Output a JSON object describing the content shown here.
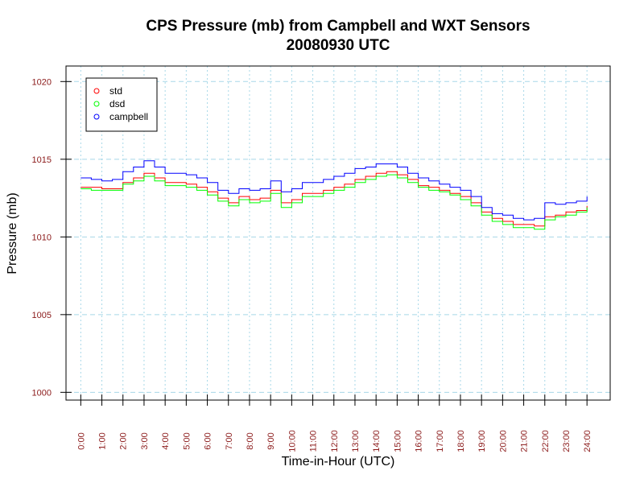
{
  "chart_data": {
    "type": "line",
    "title": "CPS Pressure (mb) from Campbell and WXT Sensors",
    "subtitle": "20080930  UTC",
    "xlabel": "Time-in-Hour (UTC)",
    "ylabel": "Pressure (mb)",
    "ylim": [
      999.5,
      1021
    ],
    "xlim": [
      -0.7,
      25.1
    ],
    "yticks": [
      1000,
      1005,
      1010,
      1015,
      1020
    ],
    "ytick_labels": [
      "1000",
      "1005",
      "1010",
      "1015",
      "1020"
    ],
    "xticks": [
      0,
      1,
      2,
      3,
      4,
      5,
      6,
      7,
      8,
      9,
      10,
      11,
      12,
      13,
      14,
      15,
      16,
      17,
      18,
      19,
      20,
      21,
      22,
      23,
      24
    ],
    "xtick_labels": [
      "0:00",
      "1:00",
      "2:00",
      "3:00",
      "4:00",
      "5:00",
      "6:00",
      "7:00",
      "8:00",
      "9:00",
      "10:00",
      "11:00",
      "12:00",
      "13:00",
      "14:00",
      "15:00",
      "16:00",
      "17:00",
      "18:00",
      "19:00",
      "20:00",
      "21:00",
      "22:00",
      "23:00",
      "24:00"
    ],
    "grid": true,
    "legend_position": "top-left",
    "series": [
      {
        "name": "std",
        "color": "#ff0000",
        "x": [
          0,
          0.5,
          1,
          1.5,
          2,
          2.5,
          3,
          3.5,
          4,
          4.5,
          5,
          5.5,
          6,
          6.5,
          7,
          7.5,
          8,
          8.5,
          9,
          9.5,
          10,
          10.5,
          11,
          11.5,
          12,
          12.5,
          13,
          13.5,
          14,
          14.5,
          15,
          15.5,
          16,
          16.5,
          17,
          17.5,
          18,
          18.5,
          19,
          19.5,
          20,
          20.5,
          21,
          21.5,
          22,
          22.5,
          23,
          23.5,
          24
        ],
        "y": [
          1013.2,
          1013.2,
          1013.1,
          1013.1,
          1013.5,
          1013.8,
          1014.1,
          1013.8,
          1013.5,
          1013.5,
          1013.4,
          1013.2,
          1012.9,
          1012.5,
          1012.2,
          1012.6,
          1012.4,
          1012.5,
          1013.0,
          1012.2,
          1012.4,
          1012.8,
          1012.8,
          1013.0,
          1013.2,
          1013.4,
          1013.7,
          1013.9,
          1014.1,
          1014.2,
          1014.0,
          1013.7,
          1013.3,
          1013.2,
          1013.0,
          1012.8,
          1012.6,
          1012.2,
          1011.6,
          1011.2,
          1011.0,
          1010.8,
          1010.8,
          1010.7,
          1011.3,
          1011.4,
          1011.6,
          1011.7,
          1012.0
        ]
      },
      {
        "name": "dsd",
        "color": "#00ff00",
        "x": [
          0,
          0.5,
          1,
          1.5,
          2,
          2.5,
          3,
          3.5,
          4,
          4.5,
          5,
          5.5,
          6,
          6.5,
          7,
          7.5,
          8,
          8.5,
          9,
          9.5,
          10,
          10.5,
          11,
          11.5,
          12,
          12.5,
          13,
          13.5,
          14,
          14.5,
          15,
          15.5,
          16,
          16.5,
          17,
          17.5,
          18,
          18.5,
          19,
          19.5,
          20,
          20.5,
          21,
          21.5,
          22,
          22.5,
          23,
          23.5,
          24
        ],
        "y": [
          1013.1,
          1013.0,
          1013.0,
          1013.0,
          1013.4,
          1013.6,
          1013.9,
          1013.6,
          1013.3,
          1013.3,
          1013.2,
          1013.0,
          1012.7,
          1012.3,
          1012.0,
          1012.4,
          1012.2,
          1012.3,
          1012.8,
          1011.9,
          1012.2,
          1012.6,
          1012.6,
          1012.8,
          1013.0,
          1013.2,
          1013.5,
          1013.7,
          1013.9,
          1014.0,
          1013.8,
          1013.5,
          1013.2,
          1013.0,
          1012.9,
          1012.7,
          1012.4,
          1012.0,
          1011.4,
          1011.0,
          1010.8,
          1010.6,
          1010.6,
          1010.5,
          1011.1,
          1011.3,
          1011.4,
          1011.6,
          1011.9
        ]
      },
      {
        "name": "campbell",
        "color": "#0000ff",
        "x": [
          0,
          0.5,
          1,
          1.5,
          2,
          2.5,
          3,
          3.5,
          4,
          4.5,
          5,
          5.5,
          6,
          6.5,
          7,
          7.5,
          8,
          8.5,
          9,
          9.5,
          10,
          10.5,
          11,
          11.5,
          12,
          12.5,
          13,
          13.5,
          14,
          14.5,
          15,
          15.5,
          16,
          16.5,
          17,
          17.5,
          18,
          18.5,
          19,
          19.5,
          20,
          20.5,
          21,
          21.5,
          22,
          22.5,
          23,
          23.5,
          24
        ],
        "y": [
          1013.8,
          1013.7,
          1013.6,
          1013.7,
          1014.2,
          1014.5,
          1014.9,
          1014.5,
          1014.1,
          1014.1,
          1014.0,
          1013.8,
          1013.5,
          1013.0,
          1012.8,
          1013.1,
          1013.0,
          1013.1,
          1013.6,
          1012.9,
          1013.1,
          1013.5,
          1013.5,
          1013.7,
          1013.9,
          1014.1,
          1014.4,
          1014.5,
          1014.7,
          1014.7,
          1014.5,
          1014.1,
          1013.8,
          1013.6,
          1013.4,
          1013.2,
          1013.0,
          1012.6,
          1011.9,
          1011.5,
          1011.4,
          1011.2,
          1011.1,
          1011.2,
          1012.2,
          1012.1,
          1012.2,
          1012.3,
          1012.6
        ]
      }
    ]
  }
}
